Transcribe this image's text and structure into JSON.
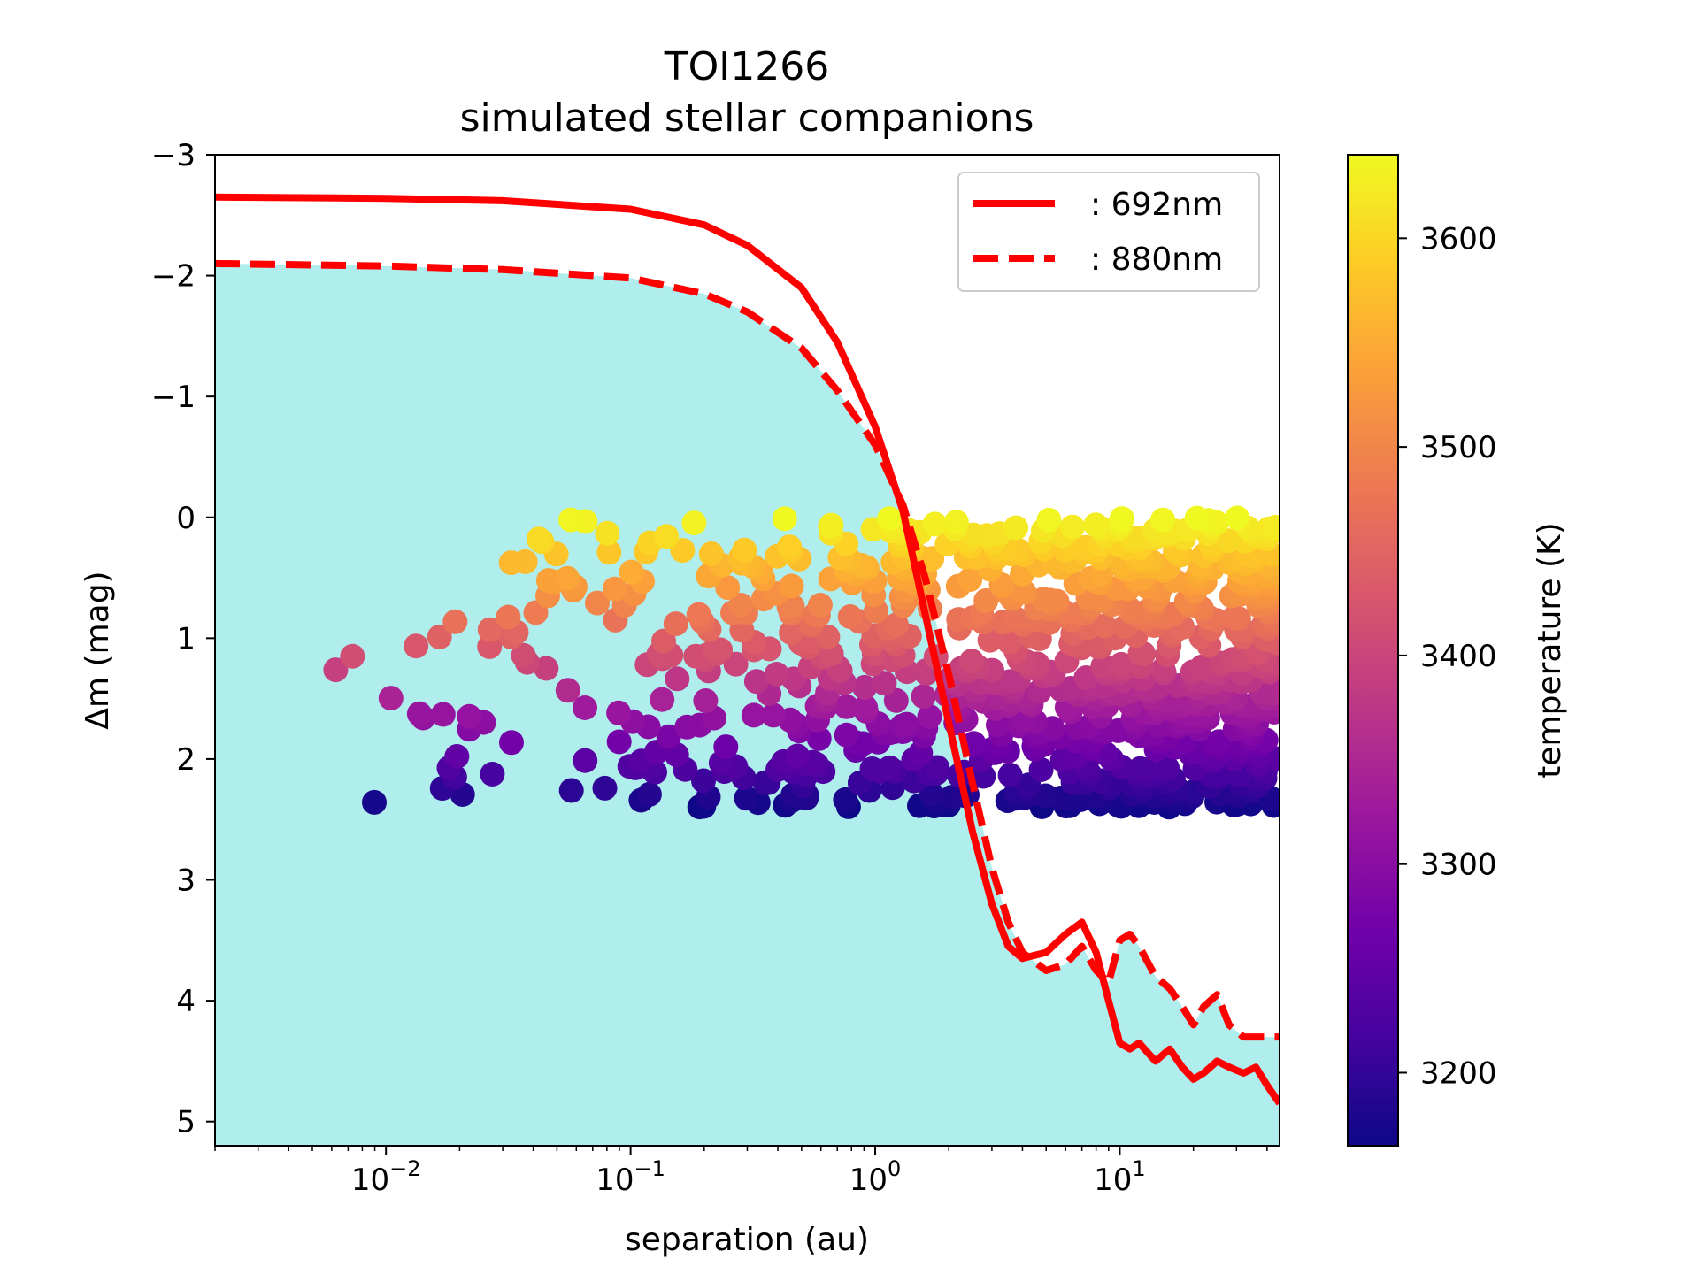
{
  "chart_data": {
    "type": "scatter",
    "title": "TOI1266",
    "subtitle": "simulated stellar companions",
    "xlabel": "separation (au)",
    "ylabel": "Δm (mag)",
    "xscale": "log",
    "xlim": [
      0.002,
      45
    ],
    "ylim": [
      5.2,
      -3
    ],
    "y_inverted": true,
    "x_tick_labels": [
      {
        "value": 0.01,
        "base": "10",
        "exp": "−2"
      },
      {
        "value": 0.1,
        "base": "10",
        "exp": "−1"
      },
      {
        "value": 1,
        "base": "10",
        "exp": "0"
      },
      {
        "value": 10,
        "base": "10",
        "exp": "1"
      }
    ],
    "y_ticks": [
      -3,
      -2,
      -1,
      0,
      1,
      2,
      3,
      4,
      5
    ],
    "y_tick_labels": [
      "−3",
      "−2",
      "−1",
      "0",
      "1",
      "2",
      "3",
      "4",
      "5"
    ],
    "colors": {
      "fill_region": "#b0eded",
      "curve": "#ff0000"
    },
    "excluded_region": {
      "x": [
        0.002,
        0.01,
        0.03,
        0.1,
        0.2,
        0.3,
        0.5,
        0.7,
        1.0,
        1.3,
        1.6,
        2.0,
        2.5,
        3.0,
        3.5,
        4.0,
        5.0,
        6.0,
        7.0,
        8.0,
        9.0,
        10.0,
        11.0,
        12.0,
        14.0,
        16.0,
        18.0,
        20.0,
        22.0,
        25.0,
        28.0,
        32.0,
        36.0,
        40.0,
        45.0
      ],
      "y": [
        -2.1,
        -2.08,
        -2.05,
        -1.98,
        -1.85,
        -1.7,
        -1.4,
        -1.05,
        -0.6,
        -0.1,
        0.5,
        1.3,
        2.2,
        2.9,
        3.35,
        3.6,
        3.75,
        3.7,
        3.55,
        3.75,
        3.85,
        3.5,
        3.45,
        3.55,
        3.8,
        3.9,
        4.05,
        4.2,
        4.05,
        3.95,
        4.2,
        4.3,
        4.3,
        4.3,
        4.3
      ]
    },
    "series": [
      {
        "name": ": 692nm",
        "style": "solid",
        "x": [
          0.002,
          0.01,
          0.03,
          0.1,
          0.2,
          0.3,
          0.5,
          0.7,
          1.0,
          1.3,
          1.6,
          2.0,
          2.5,
          3.0,
          3.5,
          4.0,
          5.0,
          6.0,
          7.0,
          8.0,
          9.0,
          10.0,
          11.0,
          12.0,
          14.0,
          16.0,
          18.0,
          20.0,
          22.0,
          25.0,
          28.0,
          32.0,
          36.0,
          40.0,
          45.0
        ],
        "y": [
          -2.65,
          -2.64,
          -2.62,
          -2.55,
          -2.42,
          -2.25,
          -1.9,
          -1.45,
          -0.75,
          -0.05,
          0.8,
          1.7,
          2.6,
          3.2,
          3.55,
          3.65,
          3.6,
          3.45,
          3.35,
          3.6,
          4.0,
          4.35,
          4.4,
          4.35,
          4.5,
          4.4,
          4.55,
          4.65,
          4.6,
          4.5,
          4.55,
          4.6,
          4.55,
          4.7,
          4.85
        ]
      },
      {
        "name": ": 880nm",
        "style": "dashed",
        "x": [
          0.002,
          0.01,
          0.03,
          0.1,
          0.2,
          0.3,
          0.5,
          0.7,
          1.0,
          1.3,
          1.6,
          2.0,
          2.5,
          3.0,
          3.5,
          4.0,
          5.0,
          6.0,
          7.0,
          8.0,
          9.0,
          10.0,
          11.0,
          12.0,
          14.0,
          16.0,
          18.0,
          20.0,
          22.0,
          25.0,
          28.0,
          32.0,
          36.0,
          40.0,
          45.0
        ],
        "y": [
          -2.1,
          -2.08,
          -2.05,
          -1.98,
          -1.85,
          -1.7,
          -1.4,
          -1.05,
          -0.6,
          -0.1,
          0.5,
          1.3,
          2.2,
          2.9,
          3.35,
          3.6,
          3.75,
          3.7,
          3.55,
          3.75,
          3.85,
          3.5,
          3.45,
          3.55,
          3.8,
          3.9,
          4.05,
          4.2,
          4.05,
          3.95,
          4.2,
          4.3,
          4.3,
          4.3,
          4.3
        ]
      }
    ],
    "scatter": {
      "n_points": 900,
      "x_range": [
        0.002,
        45
      ],
      "y_range": [
        0.0,
        2.4
      ],
      "color_by": "temperature (K)"
    },
    "legend": {
      "placement": "top-right",
      "entries": [
        ": 692nm",
        ": 880nm"
      ]
    },
    "colorbar": {
      "label": "temperature (K)",
      "range": [
        3165,
        3640
      ],
      "ticks": [
        3200,
        3300,
        3400,
        3500,
        3600
      ],
      "tick_labels": [
        "3200",
        "3300",
        "3400",
        "3500",
        "3600"
      ],
      "colormap": [
        "#0d0887",
        "#46039f",
        "#7201a8",
        "#9c179e",
        "#bd3786",
        "#d8576b",
        "#ed7953",
        "#fb9f3a",
        "#fdca26",
        "#f0f921"
      ]
    }
  }
}
